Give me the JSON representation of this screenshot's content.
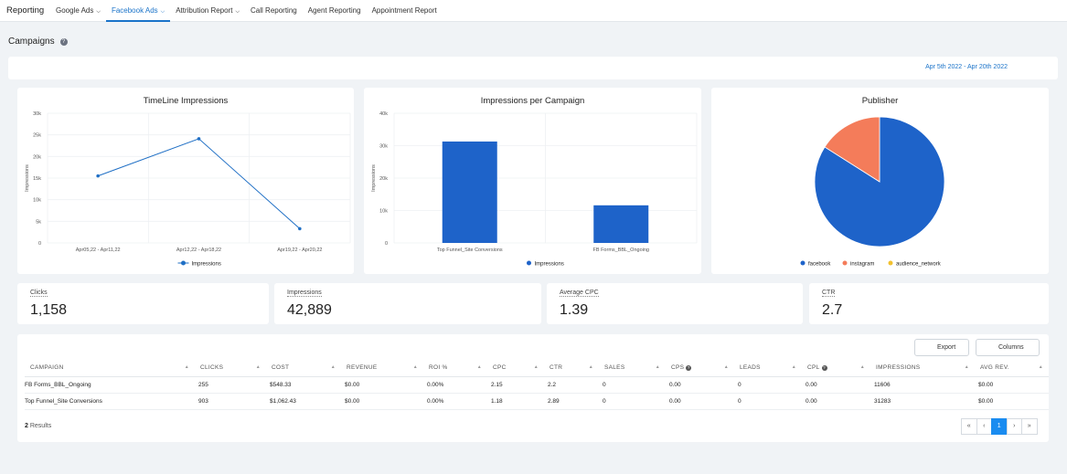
{
  "nav": {
    "title": "Reporting",
    "tabs": [
      "Google Ads",
      "Facebook Ads",
      "Attribution Report",
      "Call Reporting",
      "Agent Reporting",
      "Appointment Report"
    ]
  },
  "page": {
    "title": "Campaigns",
    "date_range": "Apr 5th 2022 - Apr 20th 2022"
  },
  "chart_data": [
    {
      "type": "line",
      "title": "TimeLine Impressions",
      "y_label": "Impressions",
      "categories": [
        "Apr05,22 - Apr11,22",
        "Apr12,22 - Apr18,22",
        "Apr19,22 - Apr20,22"
      ],
      "series": [
        {
          "name": "Impressions",
          "color": "#1f6fc5",
          "values": [
            15500,
            24100,
            3300
          ]
        }
      ],
      "ylim": [
        0,
        30000
      ],
      "yticks": [
        0,
        {
          "value": 5000,
          "label": "5k"
        },
        {
          "value": 10000,
          "label": "10k"
        },
        {
          "value": 15000,
          "label": "15k"
        },
        {
          "value": 20000,
          "label": "20k"
        },
        {
          "value": 25000,
          "label": "25k"
        },
        {
          "value": 30000,
          "label": "30k"
        }
      ],
      "grid": true
    },
    {
      "type": "bar",
      "title": "Impressions per Campaign",
      "y_label": "Impressions",
      "categories": [
        "Top Funnel_Site Conversions",
        "FB Forms_BBL_Ongoing"
      ],
      "series": [
        {
          "name": "Impressions",
          "color": "#1e63c9",
          "values": [
            31283,
            11606
          ]
        }
      ],
      "ylim": [
        0,
        40000
      ],
      "yticks": [
        0,
        {
          "value": 10000,
          "label": "10k"
        },
        {
          "value": 20000,
          "label": "20k"
        },
        {
          "value": 30000,
          "label": "30k"
        },
        {
          "value": 40000,
          "label": "40k"
        }
      ],
      "grid": true
    },
    {
      "type": "pie",
      "title": "Publisher",
      "categories": [
        "facebook",
        "instagram",
        "audience_network"
      ],
      "values": [
        84,
        16,
        0
      ],
      "colors": [
        "#1e63c9",
        "#f47c5a",
        "#f2c12e"
      ]
    }
  ],
  "kpis": [
    {
      "label": "Clicks",
      "value": "1,158"
    },
    {
      "label": "Impressions",
      "value": "42,889"
    },
    {
      "label": "Average CPC",
      "value": "1.39"
    },
    {
      "label": "CTR",
      "value": "2.7"
    }
  ],
  "table": {
    "buttons": [
      "Export",
      "Columns"
    ],
    "headers": [
      "CAMPAIGN",
      "CLICKS",
      "COST",
      "REVENUE",
      "ROI %",
      "CPC",
      "CTR",
      "SALES",
      "CPS",
      "LEADS",
      "CPL",
      "IMPRESSIONS",
      "AVG REV."
    ],
    "rows": [
      [
        "FB Forms_BBL_Ongoing",
        "255",
        "$548.33",
        "$0.00",
        "0.00%",
        "2.15",
        "2.2",
        "0",
        "0.00",
        "0",
        "0.00",
        "11606",
        "$0.00"
      ],
      [
        "Top Funnel_Site Conversions",
        "903",
        "$1,062.43",
        "$0.00",
        "0.00%",
        "1.18",
        "2.89",
        "0",
        "0.00",
        "0",
        "0.00",
        "31283",
        "$0.00"
      ]
    ],
    "results_count": "2",
    "results_label": "Results",
    "pagination": [
      "«",
      "‹",
      "1",
      "›",
      "»"
    ]
  }
}
